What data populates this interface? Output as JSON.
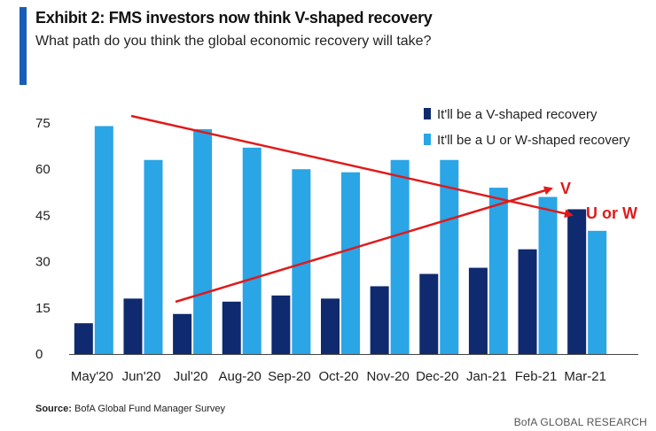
{
  "header": {
    "title": "Exhibit 2: FMS investors now think V-shaped recovery",
    "subtitle": "What path do you think the global economic recovery will take?"
  },
  "colors": {
    "accent": "#1a5db8",
    "v_series": "#0f2a6e",
    "uw_series": "#2aa5e6",
    "arrow": "#e01a1a"
  },
  "chart_data": {
    "type": "bar",
    "title": "Exhibit 2: FMS investors now think V-shaped recovery",
    "subtitle": "What path do you think the global economic recovery will take?",
    "categories": [
      "May'20",
      "Jun'20",
      "Jul'20",
      "Aug-20",
      "Sep-20",
      "Oct-20",
      "Nov-20",
      "Dec-20",
      "Jan-21",
      "Feb-21",
      "Mar-21"
    ],
    "series": [
      {
        "name": "It'll be a V-shaped recovery",
        "values": [
          10,
          18,
          13,
          17,
          19,
          18,
          22,
          26,
          28,
          34,
          47
        ]
      },
      {
        "name": "It'll be a U or W-shaped recovery",
        "values": [
          74,
          63,
          73,
          67,
          60,
          59,
          63,
          63,
          54,
          51,
          40
        ]
      }
    ],
    "yticks": [
      0,
      15,
      30,
      45,
      60,
      75
    ],
    "ylim": [
      0,
      80
    ],
    "xlabel": "",
    "ylabel": "",
    "legend": "top-right",
    "grid": false,
    "annotations": [
      {
        "label": "V",
        "arrow": "rising, from Jul'20 to Feb-21"
      },
      {
        "label": "U or W",
        "arrow": "falling, from May'20 to Mar-21"
      }
    ]
  },
  "source": {
    "label": "Source:",
    "text": "BofA Global Fund Manager Survey"
  },
  "footer": "BofA GLOBAL RESEARCH"
}
